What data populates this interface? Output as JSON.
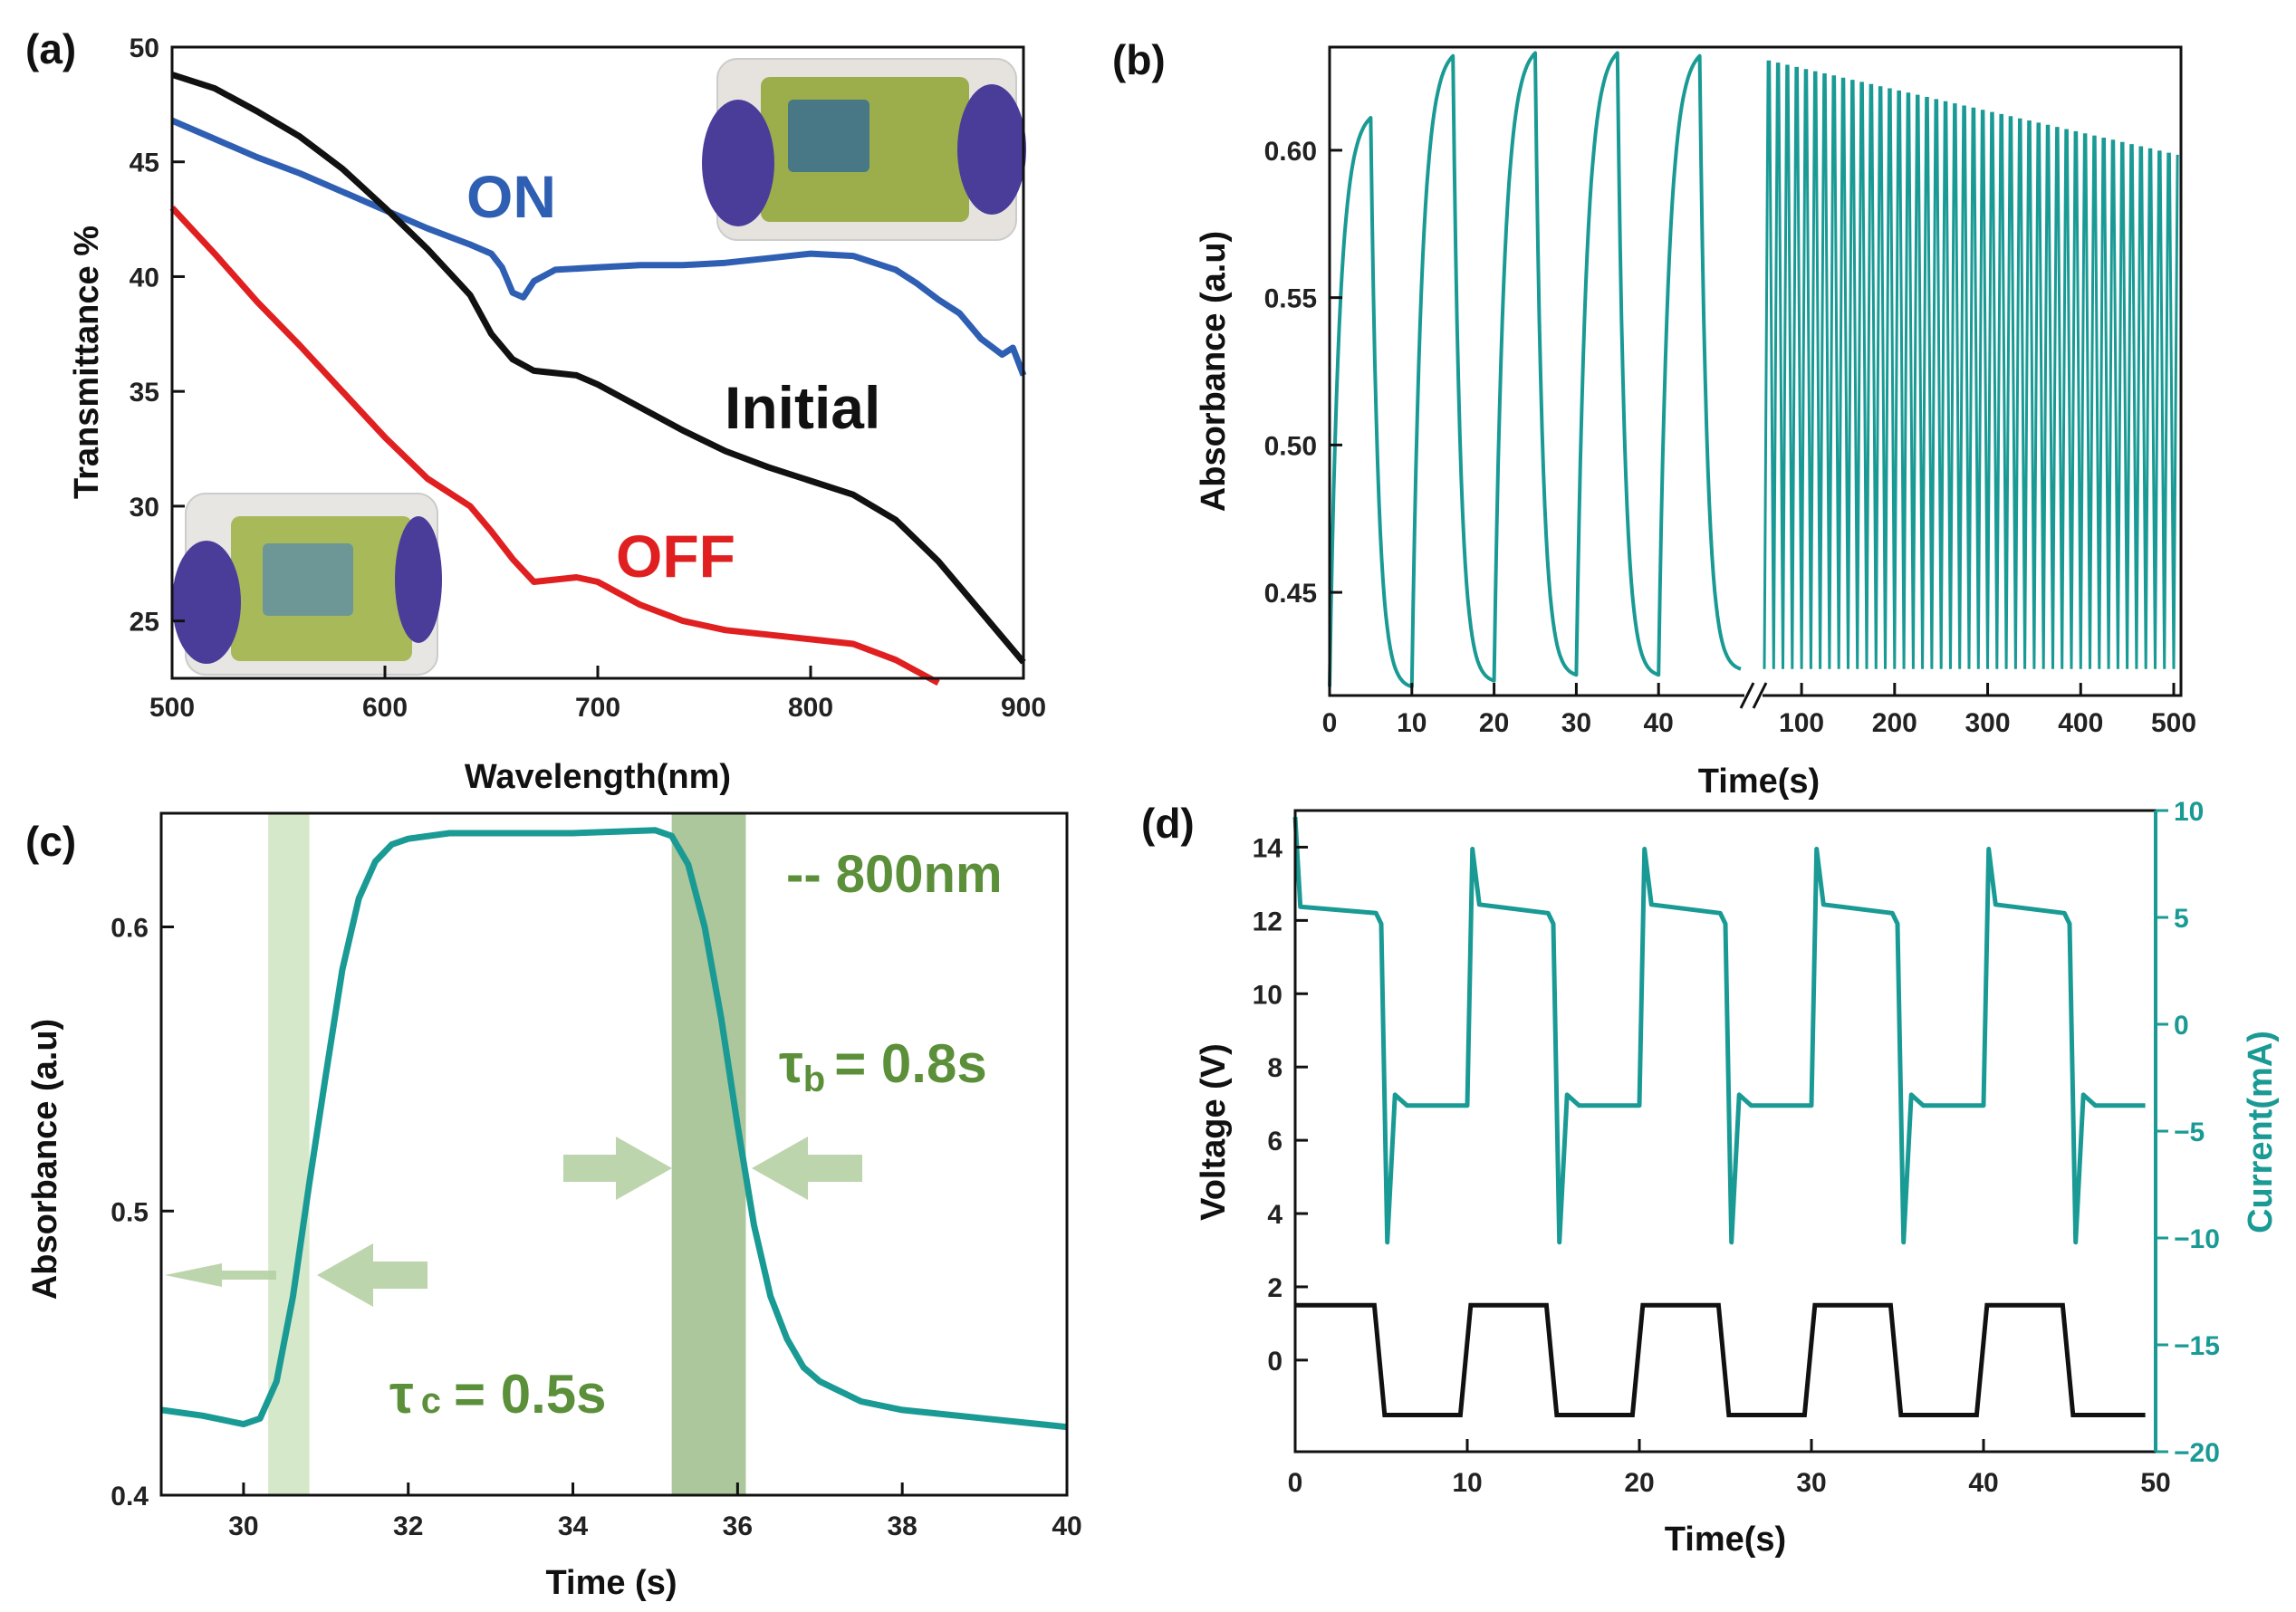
{
  "figure": {
    "panels": [
      "(a)",
      "(b)",
      "(c)",
      "(d)"
    ]
  },
  "chart_data": [
    {
      "panel": "(a)",
      "type": "line",
      "xlabel": "Wavelength(nm)",
      "ylabel": "Transmittance %",
      "xlim": [
        500,
        900
      ],
      "ylim": [
        22.5,
        50
      ],
      "xticks": [
        500,
        600,
        700,
        800,
        900
      ],
      "yticks": [
        25,
        30,
        35,
        40,
        45,
        50
      ],
      "annotations": {
        "on": "ON",
        "initial": "Initial",
        "off": "OFF"
      },
      "series": [
        {
          "name": "ON",
          "color": "#2f5fb3",
          "x": [
            500,
            520,
            540,
            560,
            580,
            600,
            620,
            640,
            650,
            655,
            660,
            665,
            670,
            680,
            700,
            720,
            740,
            760,
            780,
            800,
            820,
            840,
            850,
            860,
            870,
            880,
            890,
            895,
            900
          ],
          "y": [
            46.8,
            46.0,
            45.2,
            44.5,
            43.7,
            42.9,
            42.1,
            41.4,
            41.0,
            40.4,
            39.3,
            39.1,
            39.8,
            40.3,
            40.4,
            40.5,
            40.5,
            40.6,
            40.8,
            41.0,
            40.9,
            40.3,
            39.7,
            39.0,
            38.4,
            37.3,
            36.6,
            36.9,
            35.7
          ]
        },
        {
          "name": "Initial",
          "color": "#111111",
          "x": [
            500,
            520,
            540,
            560,
            580,
            600,
            620,
            640,
            650,
            660,
            670,
            680,
            690,
            700,
            720,
            740,
            760,
            780,
            800,
            820,
            840,
            860,
            880,
            900
          ],
          "y": [
            48.8,
            48.2,
            47.2,
            46.1,
            44.7,
            43.0,
            41.2,
            39.2,
            37.5,
            36.4,
            35.9,
            35.8,
            35.7,
            35.3,
            34.3,
            33.3,
            32.4,
            31.7,
            31.1,
            30.5,
            29.4,
            27.6,
            25.4,
            23.2
          ]
        },
        {
          "name": "OFF",
          "color": "#e02020",
          "x": [
            500,
            520,
            540,
            560,
            580,
            600,
            620,
            640,
            650,
            660,
            670,
            680,
            690,
            700,
            720,
            740,
            760,
            780,
            800,
            820,
            840,
            850,
            860
          ],
          "y": [
            43.0,
            41.0,
            38.9,
            37.0,
            35.0,
            33.0,
            31.2,
            30.0,
            28.9,
            27.7,
            26.7,
            26.8,
            26.9,
            26.7,
            25.7,
            25.0,
            24.6,
            24.4,
            24.2,
            24.0,
            23.3,
            22.8,
            22.3
          ]
        }
      ]
    },
    {
      "panel": "(b)",
      "type": "line",
      "xlabel": "Time(s)",
      "ylabel": "Absorbance (a.u)",
      "ylim": [
        0.415,
        0.635
      ],
      "xticks_left": [
        0,
        10,
        20,
        30,
        40
      ],
      "xticks_right": [
        100,
        200,
        300,
        400,
        500
      ],
      "yticks": [
        0.45,
        0.5,
        0.55,
        0.6
      ],
      "axis_break": true,
      "series": [
        {
          "name": "absorbance",
          "color": "#1a9a94",
          "cycles_left": [
            {
              "t_start": 0,
              "t_switch": 5,
              "t_end": 10,
              "high": 0.611,
              "low": 0.418
            },
            {
              "t_start": 10,
              "t_switch": 15,
              "t_end": 20,
              "high": 0.632,
              "low": 0.42
            },
            {
              "t_start": 20,
              "t_switch": 25,
              "t_end": 30,
              "high": 0.633,
              "low": 0.422
            },
            {
              "t_start": 30,
              "t_switch": 35,
              "t_end": 40,
              "high": 0.633,
              "low": 0.422
            },
            {
              "t_start": 40,
              "t_switch": 45,
              "t_end": 50,
              "high": 0.632,
              "low": 0.424
            }
          ],
          "right_section": {
            "t_range": [
              60,
              500
            ],
            "period_s": 10,
            "high_start": 0.63,
            "high_end": 0.598,
            "low": 0.424
          }
        }
      ]
    },
    {
      "panel": "(c)",
      "type": "line",
      "xlabel": "Time (s)",
      "ylabel": "Absorbance (a.u)",
      "xlim": [
        29,
        40
      ],
      "ylim": [
        0.4,
        0.64
      ],
      "xticks": [
        30,
        32,
        34,
        36,
        38,
        40
      ],
      "yticks": [
        0.4,
        0.5,
        0.6
      ],
      "annotations": {
        "wavelength": "-- 800nm",
        "tau_b": "τb = 0.8s",
        "tau_b_main": "τ",
        "tau_b_sub": "b",
        "tau_b_rest": "= 0.8s",
        "tau_c_main": "τ",
        "tau_c_sub": "c",
        "tau_c_rest": "= 0.5s"
      },
      "shaded_bands": [
        {
          "x": [
            30.3,
            30.8
          ],
          "color": "#cfe4c1"
        },
        {
          "x": [
            35.2,
            36.1
          ],
          "color": "#9dbd8a"
        }
      ],
      "series": [
        {
          "name": "800nm",
          "color": "#1a9a94",
          "x": [
            29,
            29.5,
            30,
            30.2,
            30.4,
            30.6,
            30.8,
            31.0,
            31.2,
            31.4,
            31.6,
            31.8,
            32,
            32.5,
            33,
            34,
            35,
            35.2,
            35.4,
            35.6,
            35.8,
            36.0,
            36.2,
            36.4,
            36.6,
            36.8,
            37,
            37.5,
            38,
            39,
            40
          ],
          "y": [
            0.43,
            0.428,
            0.425,
            0.427,
            0.44,
            0.47,
            0.51,
            0.548,
            0.585,
            0.61,
            0.623,
            0.629,
            0.631,
            0.633,
            0.633,
            0.633,
            0.634,
            0.632,
            0.622,
            0.6,
            0.568,
            0.53,
            0.495,
            0.47,
            0.455,
            0.445,
            0.44,
            0.433,
            0.43,
            0.427,
            0.424
          ]
        }
      ]
    },
    {
      "panel": "(d)",
      "type": "line",
      "xlabel": "Time(s)",
      "ylabel": "Voltage (V)",
      "ylabel_right": "Current(mA)",
      "xlim": [
        0,
        50
      ],
      "ylim": [
        -2.5,
        15
      ],
      "ylim_right": [
        -20,
        10
      ],
      "xticks": [
        0,
        10,
        20,
        30,
        40,
        50
      ],
      "yticks": [
        0,
        2,
        4,
        6,
        8,
        10,
        12,
        14
      ],
      "yticks_right": [
        -20,
        -15,
        -10,
        -5,
        0,
        5,
        10
      ],
      "yticks_right_labels": [
        "−20",
        "−15",
        "−10",
        "−5",
        "0",
        "5",
        "10"
      ],
      "series": [
        {
          "name": "Voltage",
          "axis": "left",
          "color": "#111111",
          "period_s": 10,
          "high": 1.5,
          "low": -1.5
        },
        {
          "name": "Current",
          "axis": "right",
          "color": "#1a9a94",
          "period_s": 10,
          "plateau_high": 5.2,
          "plateau_low": -3.8,
          "spike_high": 8.2,
          "spike_low": -10.2
        }
      ]
    }
  ]
}
